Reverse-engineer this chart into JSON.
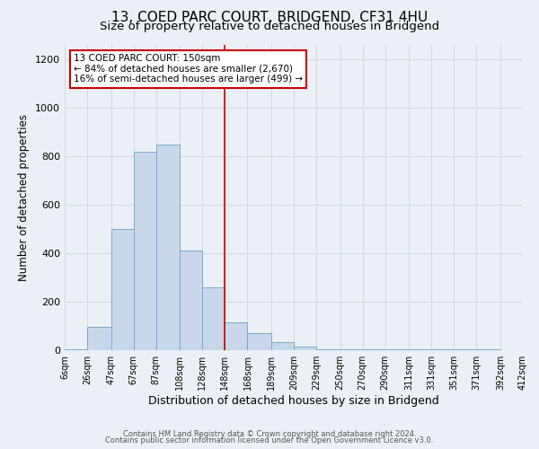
{
  "title": "13, COED PARC COURT, BRIDGEND, CF31 4HU",
  "subtitle": "Size of property relative to detached houses in Bridgend",
  "xlabel": "Distribution of detached houses by size in Bridgend",
  "ylabel": "Number of detached properties",
  "bar_left_edges": [
    6,
    26,
    47,
    67,
    87,
    108,
    128,
    148,
    168,
    189,
    209,
    229,
    250,
    270,
    290,
    311,
    331,
    351,
    371,
    392
  ],
  "bar_heights": [
    5,
    95,
    500,
    820,
    850,
    410,
    260,
    115,
    70,
    35,
    15,
    5,
    2,
    2,
    2,
    2,
    2,
    2,
    2
  ],
  "bar_widths": [
    20,
    21,
    20,
    20,
    21,
    20,
    20,
    20,
    21,
    20,
    20,
    21,
    20,
    20,
    21,
    20,
    20,
    20,
    21
  ],
  "bar_color": "#c8d8ea",
  "bar_edge_color": "#7aaac8",
  "vline_x": 148,
  "vline_color": "#cc0000",
  "xlim_left": 6,
  "xlim_right": 412,
  "ylim_top": 1260,
  "yticks": [
    0,
    200,
    400,
    600,
    800,
    1000,
    1200
  ],
  "xtick_labels": [
    "6sqm",
    "26sqm",
    "47sqm",
    "67sqm",
    "87sqm",
    "108sqm",
    "128sqm",
    "148sqm",
    "168sqm",
    "189sqm",
    "209sqm",
    "229sqm",
    "250sqm",
    "270sqm",
    "290sqm",
    "311sqm",
    "331sqm",
    "351sqm",
    "371sqm",
    "392sqm",
    "412sqm"
  ],
  "xtick_positions": [
    6,
    26,
    47,
    67,
    87,
    108,
    128,
    148,
    168,
    189,
    209,
    229,
    250,
    270,
    290,
    311,
    331,
    351,
    371,
    392,
    412
  ],
  "annotation_title": "13 COED PARC COURT: 150sqm",
  "annotation_line1": "← 84% of detached houses are smaller (2,670)",
  "annotation_line2": "16% of semi-detached houses are larger (499) →",
  "annotation_box_color": "white",
  "annotation_box_edge_color": "#cc0000",
  "footnote1": "Contains HM Land Registry data © Crown copyright and database right 2024.",
  "footnote2": "Contains public sector information licensed under the Open Government Licence v3.0.",
  "title_fontsize": 11,
  "subtitle_fontsize": 9.5,
  "xlabel_fontsize": 9,
  "ylabel_fontsize": 8.5,
  "grid_color": "#d0d8e0",
  "bg_color": "#eaf0f6"
}
